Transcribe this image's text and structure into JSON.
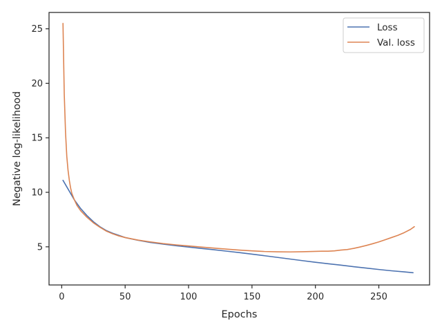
{
  "chart_data": {
    "type": "line",
    "xlabel": "Epochs",
    "ylabel": "Negative log-likelihood",
    "xlim": [
      -10,
      290
    ],
    "ylim": [
      1.5,
      26.5
    ],
    "xticks": [
      0,
      50,
      100,
      150,
      200,
      250
    ],
    "yticks": [
      5,
      10,
      15,
      20,
      25
    ],
    "grid": false,
    "legend_position": "top-right",
    "series": [
      {
        "name": "Loss",
        "color": "#4c72b0",
        "points": [
          [
            1,
            11.1
          ],
          [
            5,
            10.3
          ],
          [
            10,
            9.3
          ],
          [
            15,
            8.5
          ],
          [
            20,
            7.85
          ],
          [
            25,
            7.3
          ],
          [
            30,
            6.85
          ],
          [
            35,
            6.5
          ],
          [
            40,
            6.25
          ],
          [
            45,
            6.05
          ],
          [
            50,
            5.85
          ],
          [
            60,
            5.6
          ],
          [
            70,
            5.4
          ],
          [
            80,
            5.25
          ],
          [
            90,
            5.1
          ],
          [
            100,
            4.98
          ],
          [
            110,
            4.85
          ],
          [
            120,
            4.73
          ],
          [
            130,
            4.6
          ],
          [
            140,
            4.47
          ],
          [
            150,
            4.33
          ],
          [
            160,
            4.18
          ],
          [
            170,
            4.03
          ],
          [
            180,
            3.88
          ],
          [
            190,
            3.73
          ],
          [
            200,
            3.58
          ],
          [
            210,
            3.45
          ],
          [
            220,
            3.32
          ],
          [
            230,
            3.18
          ],
          [
            240,
            3.05
          ],
          [
            250,
            2.92
          ],
          [
            260,
            2.8
          ],
          [
            270,
            2.7
          ],
          [
            277,
            2.62
          ]
        ]
      },
      {
        "name": "Val. loss",
        "color": "#dd8452",
        "points": [
          [
            1,
            25.5
          ],
          [
            2,
            19.0
          ],
          [
            3,
            15.5
          ],
          [
            4,
            13.3
          ],
          [
            5,
            12.0
          ],
          [
            6,
            11.1
          ],
          [
            7,
            10.4
          ],
          [
            8,
            9.9
          ],
          [
            10,
            9.3
          ],
          [
            12,
            8.8
          ],
          [
            15,
            8.3
          ],
          [
            20,
            7.7
          ],
          [
            25,
            7.2
          ],
          [
            30,
            6.8
          ],
          [
            35,
            6.45
          ],
          [
            40,
            6.2
          ],
          [
            45,
            6.0
          ],
          [
            50,
            5.85
          ],
          [
            60,
            5.62
          ],
          [
            70,
            5.45
          ],
          [
            80,
            5.3
          ],
          [
            90,
            5.18
          ],
          [
            100,
            5.08
          ],
          [
            110,
            4.98
          ],
          [
            120,
            4.88
          ],
          [
            130,
            4.79
          ],
          [
            140,
            4.7
          ],
          [
            150,
            4.63
          ],
          [
            160,
            4.57
          ],
          [
            170,
            4.54
          ],
          [
            180,
            4.53
          ],
          [
            190,
            4.55
          ],
          [
            200,
            4.58
          ],
          [
            205,
            4.6
          ],
          [
            210,
            4.6
          ],
          [
            215,
            4.63
          ],
          [
            220,
            4.7
          ],
          [
            225,
            4.75
          ],
          [
            230,
            4.85
          ],
          [
            235,
            4.98
          ],
          [
            240,
            5.12
          ],
          [
            245,
            5.28
          ],
          [
            250,
            5.45
          ],
          [
            255,
            5.65
          ],
          [
            260,
            5.85
          ],
          [
            265,
            6.05
          ],
          [
            270,
            6.3
          ],
          [
            275,
            6.6
          ],
          [
            278,
            6.85
          ]
        ]
      }
    ]
  }
}
